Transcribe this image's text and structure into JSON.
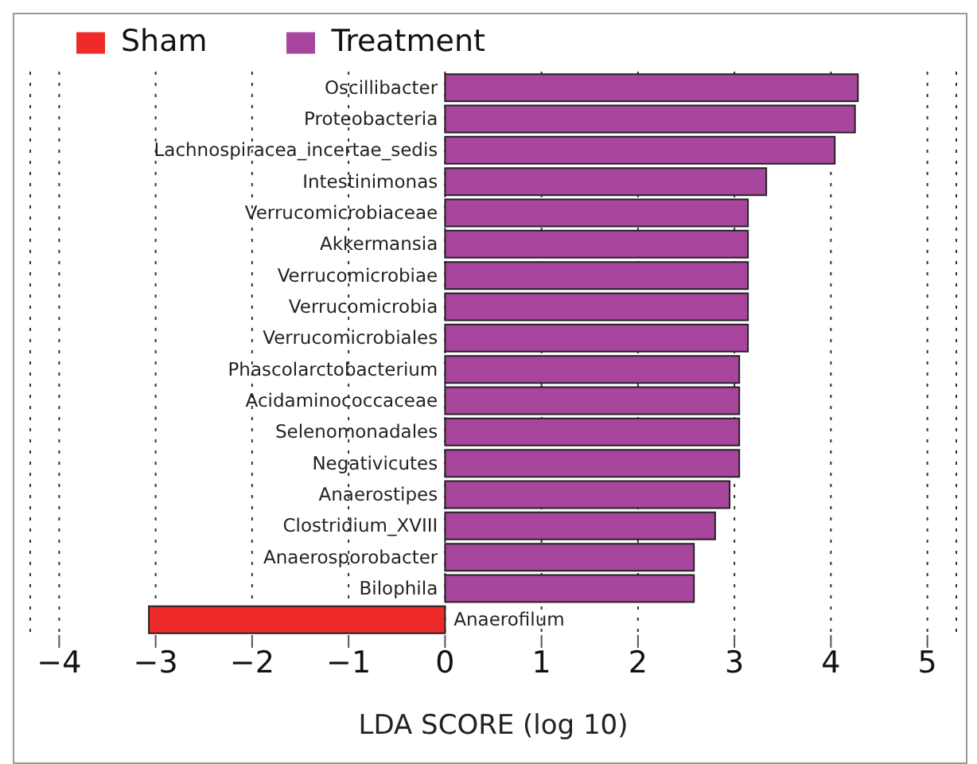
{
  "chart_data": {
    "type": "bar",
    "orientation": "horizontal",
    "stacked": true,
    "xlabel": "LDA SCORE (log 10)",
    "categories": [
      "Oscillibacter",
      "Proteobacteria",
      "Lachnospiracea_incertae_sedis",
      "Intestinimonas",
      "Verrucomicrobiaceae",
      "Akkermansia",
      "Verrucomicrobiae",
      "Verrucomicrobia",
      "Verrucomicrobiales",
      "Phascolarctobacterium",
      "Acidaminococcaceae",
      "Selenomonadales",
      "Negativicutes",
      "Anaerostipes",
      "Clostridium_XVIII",
      "Anaerosporobacter",
      "Bilophila",
      "Anaerofilum"
    ],
    "series": [
      {
        "name": "Sham",
        "color": "#ee2a2a",
        "values": [
          null,
          null,
          null,
          null,
          null,
          null,
          null,
          null,
          null,
          null,
          null,
          null,
          null,
          null,
          null,
          null,
          null,
          -3.07
        ]
      },
      {
        "name": "Treatment",
        "color": "#a8459c",
        "values": [
          4.28,
          4.25,
          4.04,
          3.33,
          3.14,
          3.14,
          3.14,
          3.14,
          3.14,
          3.05,
          3.05,
          3.05,
          3.05,
          2.95,
          2.8,
          2.58,
          2.58,
          null
        ]
      }
    ],
    "xlim": [
      -4.3,
      5.3
    ],
    "xticks": [
      -4,
      -3,
      -2,
      -1,
      0,
      1,
      2,
      3,
      4,
      5
    ],
    "grid": "x",
    "legend": "top left"
  }
}
